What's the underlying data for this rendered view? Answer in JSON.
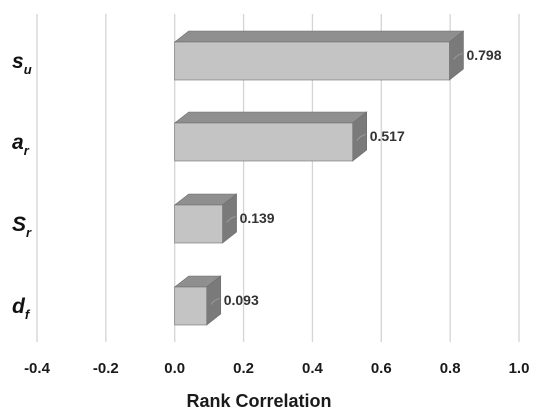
{
  "chart_data": {
    "type": "bar",
    "orientation": "horizontal",
    "style": "3d",
    "categories": [
      {
        "main": "s",
        "sub": "u"
      },
      {
        "main": "a",
        "sub": "r"
      },
      {
        "main": "S",
        "sub": "r"
      },
      {
        "main": "d",
        "sub": "f"
      }
    ],
    "values": [
      0.798,
      0.517,
      0.139,
      0.093
    ],
    "data_labels": [
      "0.798",
      "0.517",
      "0.139",
      "0.093"
    ],
    "xlabel": "Rank Correlation",
    "xlim": [
      -0.4,
      1.0
    ],
    "xticks": [
      "-0.4",
      "-0.2",
      "0.0",
      "0.2",
      "0.4",
      "0.6",
      "0.8",
      "1.0"
    ],
    "grid": true,
    "colors": {
      "bar_front": "#c4c4c4",
      "bar_top": "#8f8f8f",
      "bar_side": "#7a7a7a",
      "bar_edge": "#6e6e6e",
      "grid": "#d4d4d4"
    }
  }
}
